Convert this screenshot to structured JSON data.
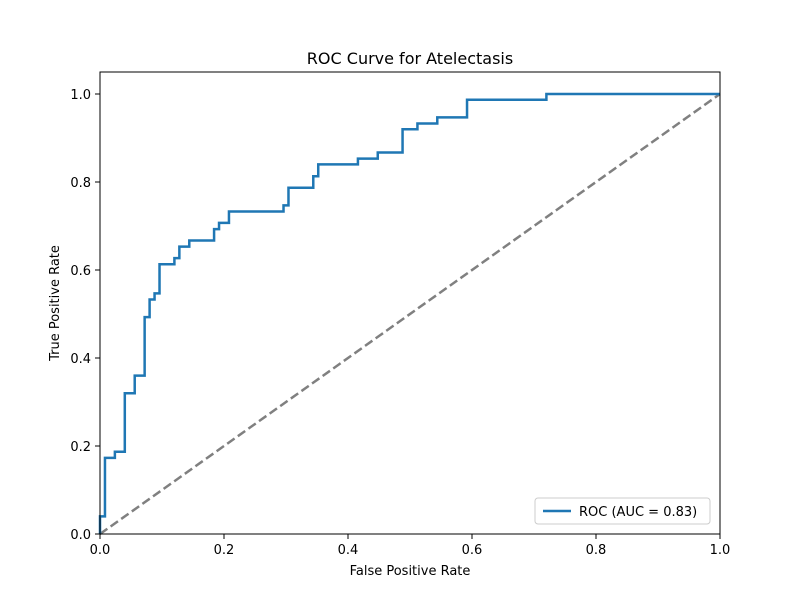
{
  "chart_data": {
    "type": "line",
    "title": "ROC Curve for Atelectasis",
    "xlabel": "False Positive Rate",
    "ylabel": "True Positive Rate",
    "xlim": [
      0.0,
      1.0
    ],
    "ylim": [
      0.0,
      1.05
    ],
    "xticks": [
      "0.0",
      "0.2",
      "0.4",
      "0.6",
      "0.8",
      "1.0"
    ],
    "yticks": [
      "0.0",
      "0.2",
      "0.4",
      "0.6",
      "0.8",
      "1.0"
    ],
    "grid": false,
    "legend_position": "lower-right",
    "series": [
      {
        "name": "ROC (AUC = 0.83)",
        "color": "#1f77b4",
        "style": "solid",
        "x": [
          0.0,
          0.0,
          0.008,
          0.008,
          0.024,
          0.024,
          0.04,
          0.04,
          0.056,
          0.056,
          0.072,
          0.072,
          0.08,
          0.08,
          0.088,
          0.088,
          0.096,
          0.096,
          0.12,
          0.12,
          0.128,
          0.128,
          0.144,
          0.144,
          0.184,
          0.184,
          0.192,
          0.192,
          0.208,
          0.208,
          0.296,
          0.296,
          0.304,
          0.304,
          0.344,
          0.344,
          0.352,
          0.352,
          0.416,
          0.416,
          0.448,
          0.448,
          0.488,
          0.488,
          0.512,
          0.512,
          0.544,
          0.544,
          0.592,
          0.592,
          0.72,
          0.72,
          1.0
        ],
        "y": [
          0.0,
          0.04,
          0.04,
          0.173,
          0.173,
          0.187,
          0.187,
          0.32,
          0.32,
          0.36,
          0.36,
          0.493,
          0.493,
          0.533,
          0.533,
          0.547,
          0.547,
          0.613,
          0.613,
          0.627,
          0.627,
          0.653,
          0.653,
          0.667,
          0.667,
          0.693,
          0.693,
          0.707,
          0.707,
          0.733,
          0.733,
          0.747,
          0.747,
          0.787,
          0.787,
          0.813,
          0.813,
          0.84,
          0.84,
          0.853,
          0.853,
          0.867,
          0.867,
          0.92,
          0.92,
          0.933,
          0.933,
          0.947,
          0.947,
          0.987,
          0.987,
          1.0,
          1.0
        ]
      },
      {
        "name": "",
        "color": "#808080",
        "style": "dashed",
        "x": [
          0.0,
          1.0
        ],
        "y": [
          0.0,
          1.0
        ]
      }
    ]
  }
}
